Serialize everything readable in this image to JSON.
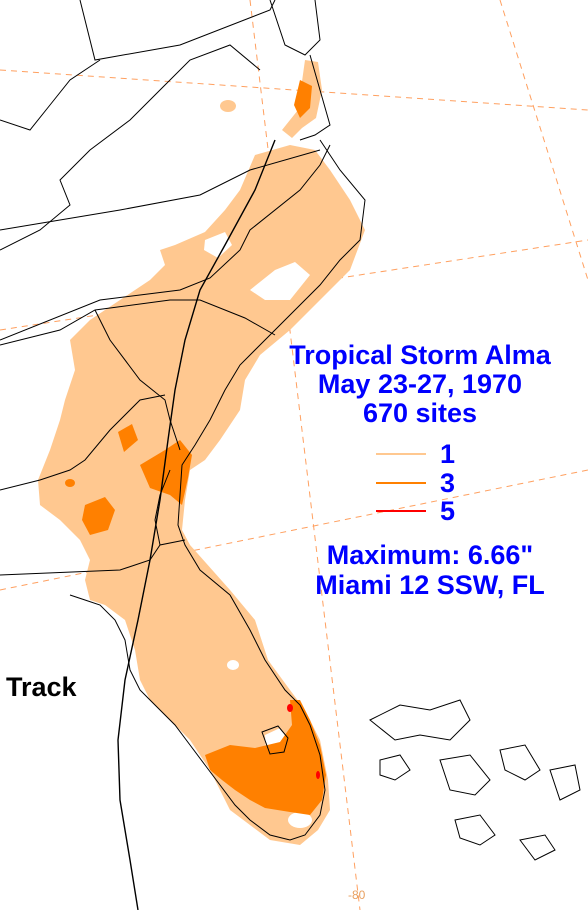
{
  "title": {
    "storm_name": "Tropical Storm Alma",
    "dates": "May 23-27, 1970",
    "sites": "670 sites"
  },
  "legend": {
    "units": "inches",
    "items": [
      {
        "value": "1",
        "color": "#ffc890"
      },
      {
        "value": "3",
        "color": "#ff8000"
      },
      {
        "value": "5",
        "color": "#ff0000"
      }
    ]
  },
  "maximum": {
    "label": "Maximum: 6.66\"",
    "location": "Miami 12 SSW, FL"
  },
  "track_label": "Track",
  "grid": {
    "longitude_label": "-80"
  },
  "colors": {
    "light_rain": "#ffc890",
    "medium_rain": "#ff8000",
    "heavy_rain": "#ff0000",
    "text": "#0000ff",
    "boundaries": "#000000",
    "graticule": "#ffa060",
    "background": "#ffffff"
  }
}
